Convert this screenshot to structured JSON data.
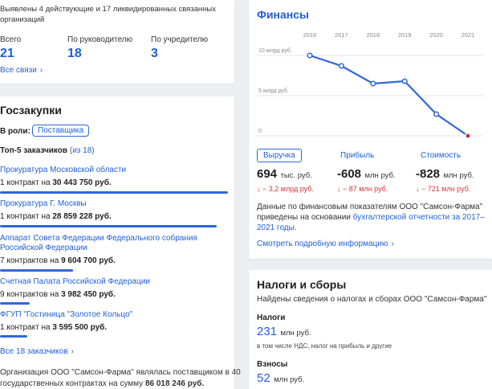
{
  "links": {
    "intro": "Выявлены 4 действующие и 17 ликвидированных связанных",
    "intro2": "организаций",
    "stats": [
      {
        "label": "Всего",
        "value": "21"
      },
      {
        "label": "По руководителю",
        "value": "18"
      },
      {
        "label": "По учредителю",
        "value": "3"
      }
    ],
    "all_label": "Все связи",
    "chevron": "›"
  },
  "procurement": {
    "title": "Госзакупки",
    "role_label": "В роли:",
    "role_value": "Поставщика",
    "top_label": "Топ-5 заказчиков",
    "top_paren_open": "(",
    "top_count": "из 18",
    "top_paren_close": ")",
    "customers": [
      {
        "name_lines": [
          "Прокуратура Московской области"
        ],
        "count": "1 контракт на",
        "sum": "30 443 750 руб.",
        "share": 1.0
      },
      {
        "name_lines": [
          "Прокуратура Г. Москвы"
        ],
        "count": "1 контракт на",
        "sum": "28 859 228 руб.",
        "share": 0.95
      },
      {
        "name_lines": [
          "Аппарат Совета Федерации Федерального собрания",
          "Российской Федерации"
        ],
        "count": "7 контрактов на",
        "sum": "9 604 700 руб.",
        "share": 0.32
      },
      {
        "name_lines": [
          "Счетная Палата Российской Федерации"
        ],
        "count": "9 контрактов на",
        "sum": "3 982 450 руб.",
        "share": 0.13
      },
      {
        "name_lines": [
          "ФГУП \"Гостиница \"Золотое Кольцо\""
        ],
        "count": "1 контракт на",
        "sum": "3 595 500 руб.",
        "share": 0.12
      }
    ],
    "all_label": "Все 18 заказчиков",
    "summary_line1": "Организация ООО \"Самсон-Фарма\" являлась поставщиком в 40",
    "summary_line2": "государственных контрактах на сумму",
    "summary_sum": "86 018 246 руб."
  },
  "finance": {
    "title": "Финансы",
    "tabs": [
      {
        "label": "Выручка",
        "value": "694",
        "unit": "тыс. руб.",
        "delta": "↓ − 3,2 млрд руб."
      },
      {
        "label": "Прибыль",
        "value": "-608",
        "unit": "млн руб.",
        "delta": "↓ − 87 млн руб."
      },
      {
        "label": "Стоимость",
        "value": "-828",
        "unit": "млн руб.",
        "delta": "↓ − 721 млн руб."
      }
    ],
    "note_line1": "Данные по финансовым показателям ООО \"Самсон-Фарма\"",
    "note_line2": "приведены на основании",
    "note_link": "бухгалтерской отчетности за 2017–",
    "note_link2": "2021 годы",
    "note_end": ".",
    "more_label": "Смотреть подробную информацию",
    "accent": "#2f67d8",
    "down_color": "#d6333a"
  },
  "chart_data": {
    "type": "line",
    "x": [
      "2016",
      "2017",
      "2018",
      "2019",
      "2020",
      "2021"
    ],
    "series": [
      {
        "values": [
          10.0,
          8.7,
          6.5,
          6.8,
          2.7,
          0.0
        ]
      }
    ],
    "ytick_labels": [
      "10 млрд руб.",
      "5 млрд руб.",
      "0"
    ],
    "ytick_values": [
      10,
      5,
      0
    ],
    "ylim": [
      0,
      10
    ],
    "grid": true
  },
  "taxes": {
    "title": "Налоги и сборы",
    "intro": "Найдены сведения о налогах и сборах ООО \"Самсон-Фарма\"",
    "taxes_label": "Налоги",
    "taxes_value": "231",
    "taxes_unit": "млн руб.",
    "taxes_note": "в том числе НДС, налог на прибыль и другие",
    "fees_label": "Взносы",
    "fees_value": "52",
    "fees_unit": "млн руб."
  }
}
